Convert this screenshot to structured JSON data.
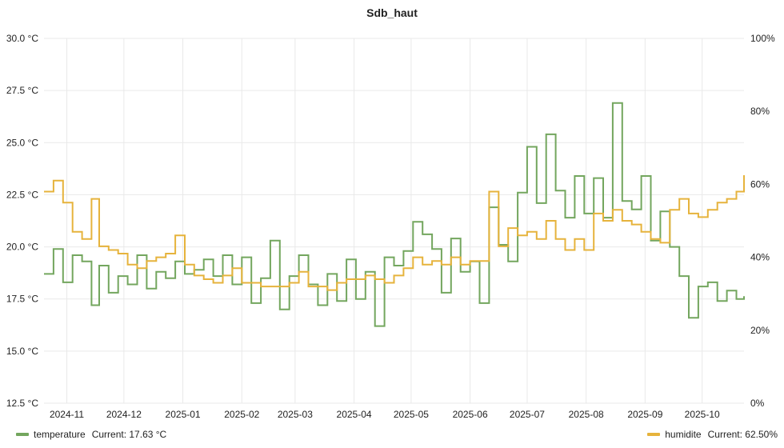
{
  "chart_data": {
    "type": "line",
    "title": "Sdb_haut",
    "x_tick_labels": [
      "2024-11",
      "2024-12",
      "2025-01",
      "2025-02",
      "2025-03",
      "2025-04",
      "2025-05",
      "2025-06",
      "2025-07",
      "2025-08",
      "2025-09",
      "2025-10"
    ],
    "y_left_tick_labels": [
      "30.0 °C",
      "27.5 °C",
      "25.0 °C",
      "22.5 °C",
      "20.0 °C",
      "17.5 °C",
      "15.0 °C",
      "12.5 °C"
    ],
    "y_right_tick_labels": [
      "100%",
      "80%",
      "60%",
      "40%",
      "20%",
      "0%"
    ],
    "ylim_left": [
      12.5,
      30.0
    ],
    "ylim_right": [
      0,
      100
    ],
    "xlim": [
      "2024-10-20",
      "2025-10-23"
    ],
    "grid": true,
    "legend_position": "bottom",
    "colors": {
      "temperature": "#73a65e",
      "humidite": "#e6b33c"
    },
    "series": [
      {
        "name": "temperature",
        "axis": "left",
        "current_label": "Current: 17.63 °C",
        "x": [
          "2024-10-20",
          "2024-10-25",
          "2024-10-30",
          "2024-11-04",
          "2024-11-09",
          "2024-11-14",
          "2024-11-18",
          "2024-11-23",
          "2024-11-28",
          "2024-12-03",
          "2024-12-08",
          "2024-12-13",
          "2024-12-18",
          "2024-12-23",
          "2024-12-28",
          "2025-01-02",
          "2025-01-07",
          "2025-01-12",
          "2025-01-17",
          "2025-01-22",
          "2025-01-27",
          "2025-02-01",
          "2025-02-06",
          "2025-02-11",
          "2025-02-16",
          "2025-02-21",
          "2025-02-26",
          "2025-03-03",
          "2025-03-08",
          "2025-03-13",
          "2025-03-18",
          "2025-03-23",
          "2025-03-28",
          "2025-04-02",
          "2025-04-07",
          "2025-04-12",
          "2025-04-17",
          "2025-04-22",
          "2025-04-27",
          "2025-05-02",
          "2025-05-07",
          "2025-05-12",
          "2025-05-17",
          "2025-05-22",
          "2025-05-27",
          "2025-06-01",
          "2025-06-06",
          "2025-06-11",
          "2025-06-16",
          "2025-06-21",
          "2025-06-26",
          "2025-07-01",
          "2025-07-06",
          "2025-07-11",
          "2025-07-16",
          "2025-07-21",
          "2025-07-26",
          "2025-07-31",
          "2025-08-05",
          "2025-08-10",
          "2025-08-15",
          "2025-08-20",
          "2025-08-25",
          "2025-08-30",
          "2025-09-04",
          "2025-09-09",
          "2025-09-14",
          "2025-09-19",
          "2025-09-24",
          "2025-09-29",
          "2025-10-04",
          "2025-10-09",
          "2025-10-14",
          "2025-10-19",
          "2025-10-23"
        ],
        "values": [
          18.7,
          19.9,
          18.3,
          19.6,
          19.3,
          17.2,
          19.1,
          17.8,
          18.6,
          18.2,
          19.6,
          18.0,
          18.8,
          18.5,
          19.3,
          18.7,
          18.9,
          19.4,
          18.6,
          19.6,
          18.2,
          19.5,
          17.3,
          18.5,
          20.3,
          17.0,
          18.6,
          19.6,
          18.2,
          17.2,
          18.7,
          17.4,
          19.4,
          17.5,
          18.8,
          16.2,
          19.5,
          19.1,
          19.8,
          21.2,
          20.6,
          19.9,
          17.8,
          20.4,
          18.8,
          19.3,
          17.3,
          21.9,
          20.1,
          19.3,
          22.6,
          24.8,
          22.1,
          25.4,
          22.7,
          21.4,
          23.4,
          21.6,
          23.3,
          21.4,
          26.9,
          22.2,
          21.8,
          23.4,
          20.3,
          21.7,
          20.0,
          18.6,
          16.6,
          18.1,
          18.3,
          17.4,
          17.9,
          17.5,
          17.63
        ]
      },
      {
        "name": "humidite",
        "axis": "right",
        "current_label": "Current: 62.50%",
        "x": [
          "2024-10-20",
          "2024-10-25",
          "2024-10-30",
          "2024-11-04",
          "2024-11-09",
          "2024-11-14",
          "2024-11-18",
          "2024-11-23",
          "2024-11-28",
          "2024-12-03",
          "2024-12-08",
          "2024-12-13",
          "2024-12-18",
          "2024-12-23",
          "2024-12-28",
          "2025-01-02",
          "2025-01-07",
          "2025-01-12",
          "2025-01-17",
          "2025-01-22",
          "2025-01-27",
          "2025-02-01",
          "2025-02-06",
          "2025-02-11",
          "2025-02-16",
          "2025-02-21",
          "2025-02-26",
          "2025-03-03",
          "2025-03-08",
          "2025-03-13",
          "2025-03-18",
          "2025-03-23",
          "2025-03-28",
          "2025-04-02",
          "2025-04-07",
          "2025-04-12",
          "2025-04-17",
          "2025-04-22",
          "2025-04-27",
          "2025-05-02",
          "2025-05-07",
          "2025-05-12",
          "2025-05-17",
          "2025-05-22",
          "2025-05-27",
          "2025-06-01",
          "2025-06-06",
          "2025-06-11",
          "2025-06-16",
          "2025-06-21",
          "2025-06-26",
          "2025-07-01",
          "2025-07-06",
          "2025-07-11",
          "2025-07-16",
          "2025-07-21",
          "2025-07-26",
          "2025-07-31",
          "2025-08-05",
          "2025-08-10",
          "2025-08-15",
          "2025-08-20",
          "2025-08-25",
          "2025-08-30",
          "2025-09-04",
          "2025-09-09",
          "2025-09-14",
          "2025-09-19",
          "2025-09-24",
          "2025-09-29",
          "2025-10-04",
          "2025-10-09",
          "2025-10-14",
          "2025-10-19",
          "2025-10-23"
        ],
        "values": [
          58,
          61,
          55,
          47,
          45,
          56,
          43,
          42,
          41,
          38,
          37,
          39,
          40,
          41,
          46,
          38,
          35,
          34,
          33,
          35,
          37,
          33,
          33,
          32,
          32,
          32,
          33,
          36,
          32,
          32,
          31,
          33,
          34,
          34,
          35,
          34,
          33,
          35,
          37,
          40,
          38,
          39,
          38,
          40,
          38,
          39,
          39,
          58,
          43,
          48,
          46,
          47,
          45,
          50,
          45,
          42,
          45,
          42,
          52,
          50,
          53,
          50,
          49,
          47,
          45,
          44,
          53,
          56,
          52,
          51,
          53,
          55,
          56,
          58,
          62.5
        ]
      }
    ]
  }
}
